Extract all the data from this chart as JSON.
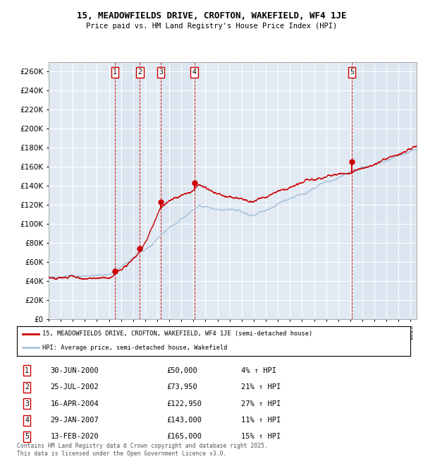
{
  "title": "15, MEADOWFIELDS DRIVE, CROFTON, WAKEFIELD, WF4 1JE",
  "subtitle": "Price paid vs. HM Land Registry's House Price Index (HPI)",
  "ylim": [
    0,
    270000
  ],
  "yticks": [
    0,
    20000,
    40000,
    60000,
    80000,
    100000,
    120000,
    140000,
    160000,
    180000,
    200000,
    220000,
    240000,
    260000
  ],
  "background_color": "#ffffff",
  "plot_bg_color": "#dce6f0",
  "grid_color": "#ffffff",
  "line_color_red": "#cc0000",
  "line_color_blue": "#a8c4dc",
  "purchases": [
    {
      "date_num": 2000.5,
      "price": 50000,
      "label": "1",
      "date_str": "30-JUN-2000",
      "pct": "4%"
    },
    {
      "date_num": 2002.56,
      "price": 73950,
      "label": "2",
      "date_str": "25-JUL-2002",
      "pct": "21%"
    },
    {
      "date_num": 2004.29,
      "price": 122950,
      "label": "3",
      "date_str": "16-APR-2004",
      "pct": "27%"
    },
    {
      "date_num": 2007.08,
      "price": 143000,
      "label": "4",
      "date_str": "29-JAN-2007",
      "pct": "11%"
    },
    {
      "date_num": 2020.12,
      "price": 165000,
      "label": "5",
      "date_str": "13-FEB-2020",
      "pct": "15%"
    }
  ],
  "legend_entry1": "15, MEADOWFIELDS DRIVE, CROFTON, WAKEFIELD, WF4 1JE (semi-detached house)",
  "legend_entry2": "HPI: Average price, semi-detached house, Wakefield",
  "footer": "Contains HM Land Registry data © Crown copyright and database right 2025.\nThis data is licensed under the Open Government Licence v3.0.",
  "xmin": 1995,
  "xmax": 2025.5
}
